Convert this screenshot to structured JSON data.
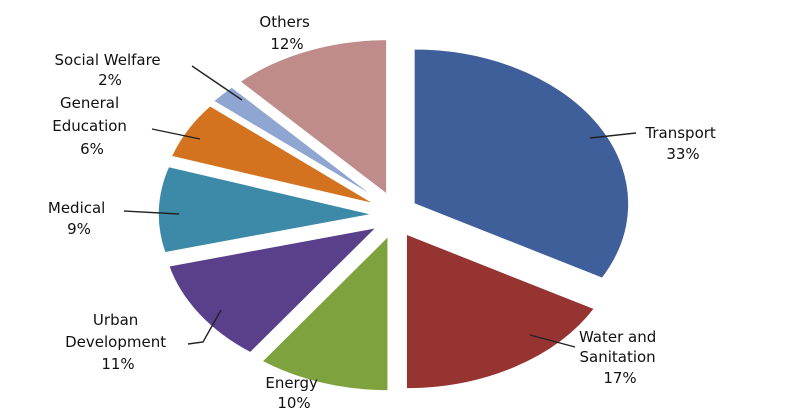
{
  "chart_data": {
    "type": "pie",
    "exploded": true,
    "categories": [
      "Transport",
      "Water and Sanitation",
      "Energy",
      "Urban Development",
      "Medical",
      "General Education",
      "Social Welfare",
      "Others"
    ],
    "values": [
      33,
      17,
      10,
      11,
      9,
      6,
      2,
      12
    ],
    "value_labels": [
      "33%",
      "17%",
      "10%",
      "11%",
      "9%",
      "6%",
      "2%",
      "12%"
    ],
    "colors": [
      "#3f5f9a",
      "#963431",
      "#7ea23e",
      "#5a3f8b",
      "#3c8aa8",
      "#d3731f",
      "#8fa6d3",
      "#c08b8b"
    ],
    "labels": [
      {
        "lines": [
          "Transport",
          "33%"
        ]
      },
      {
        "lines": [
          "Water and",
          "Sanitation",
          "17%"
        ]
      },
      {
        "lines": [
          "Energy",
          "10%"
        ]
      },
      {
        "lines": [
          "Urban",
          "Development",
          "11%"
        ]
      },
      {
        "lines": [
          "Medical",
          "9%"
        ]
      },
      {
        "lines": [
          "General",
          "Education",
          "6%"
        ]
      },
      {
        "lines": [
          "Social Welfare",
          "2%"
        ]
      },
      {
        "lines": [
          "Others",
          "12%"
        ]
      }
    ]
  }
}
